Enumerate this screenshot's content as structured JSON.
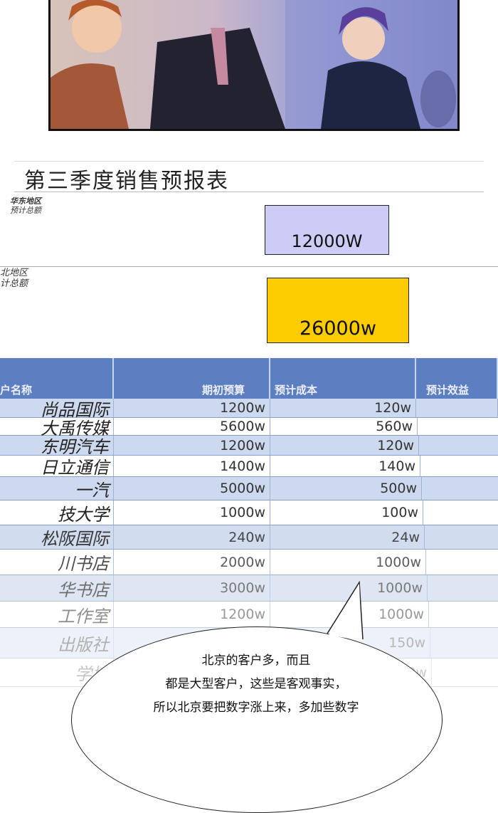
{
  "sheet": {
    "title": "第三季度销售预报表",
    "regions": [
      {
        "line1": "华东地区",
        "line2": "预计总额",
        "value": "12000W",
        "color": "#ccccf6"
      },
      {
        "line1": "北地区",
        "line2": "计总额",
        "value": "26000w",
        "color": "#fccc00"
      }
    ]
  },
  "table": {
    "headers": [
      "户名称",
      "期初预算",
      "预计成本",
      "预计效益"
    ],
    "header_color": "#5b7fc0",
    "rows": [
      {
        "name": "尚品国际",
        "budget": "1200w",
        "cost": "120w"
      },
      {
        "name": "大禹传媒",
        "budget": "5600w",
        "cost": "560w"
      },
      {
        "name": "东明汽车",
        "budget": "1200w",
        "cost": "120w"
      },
      {
        "name": "日立通信",
        "budget": "1400w",
        "cost": "140w"
      },
      {
        "name": "一汽",
        "budget": "5000w",
        "cost": "500w"
      },
      {
        "name": "技大学",
        "budget": "1000w",
        "cost": "100w"
      },
      {
        "name": "松阪国际",
        "budget": "240w",
        "cost": "24w"
      },
      {
        "name": "川书店",
        "budget": "2000w",
        "cost": "1000w"
      },
      {
        "name": "华书店",
        "budget": "3000w",
        "cost": "1000w"
      },
      {
        "name": "工作室",
        "budget": "1200w",
        "cost": "1000w"
      },
      {
        "name": "出版社",
        "budget": "",
        "cost": "150w"
      },
      {
        "name": "学城",
        "budget": "",
        "cost": "1200w"
      }
    ]
  },
  "speech_bubble": {
    "lines": [
      "北京的客户多，而且",
      "都是大型客户，这些是客观事实，",
      "所以北京要把数字涨上来，多加些数字"
    ]
  }
}
